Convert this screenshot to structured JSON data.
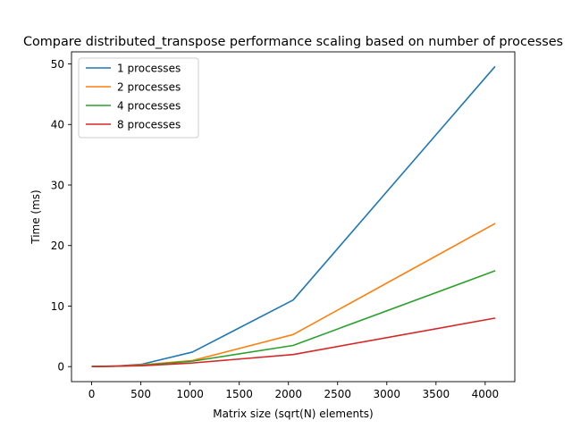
{
  "chart_data": {
    "type": "line",
    "title": "Compare distributed_transpose performance scaling based on number of processes",
    "xlabel": "Matrix size (sqrt(N) elements)",
    "ylabel": "Time (ms)",
    "xlim": [
      -205,
      4301
    ],
    "ylim": [
      -2.48,
      52.0
    ],
    "xticks": [
      0,
      500,
      1000,
      1500,
      2000,
      2500,
      3000,
      3500,
      4000
    ],
    "yticks": [
      0,
      10,
      20,
      30,
      40,
      50
    ],
    "legend_position": "top-left",
    "grid": false,
    "x": [
      8,
      16,
      32,
      64,
      128,
      256,
      512,
      1024,
      2048,
      4096
    ],
    "series": [
      {
        "name": "1 processes",
        "color": "#1f77b4",
        "values": [
          0.02,
          0.02,
          0.02,
          0.02,
          0.05,
          0.1,
          0.4,
          2.4,
          11.0,
          49.5
        ]
      },
      {
        "name": "2 processes",
        "color": "#ff7f0e",
        "values": [
          0.02,
          0.02,
          0.02,
          0.02,
          0.04,
          0.08,
          0.3,
          1.0,
          5.3,
          23.6
        ]
      },
      {
        "name": "4 processes",
        "color": "#2ca02c",
        "values": [
          0.02,
          0.02,
          0.02,
          0.02,
          0.04,
          0.08,
          0.2,
          0.9,
          3.5,
          15.8
        ]
      },
      {
        "name": "8 processes",
        "color": "#d62728",
        "values": [
          0.02,
          0.02,
          0.02,
          0.02,
          0.04,
          0.07,
          0.15,
          0.6,
          2.0,
          8.0
        ]
      }
    ]
  }
}
